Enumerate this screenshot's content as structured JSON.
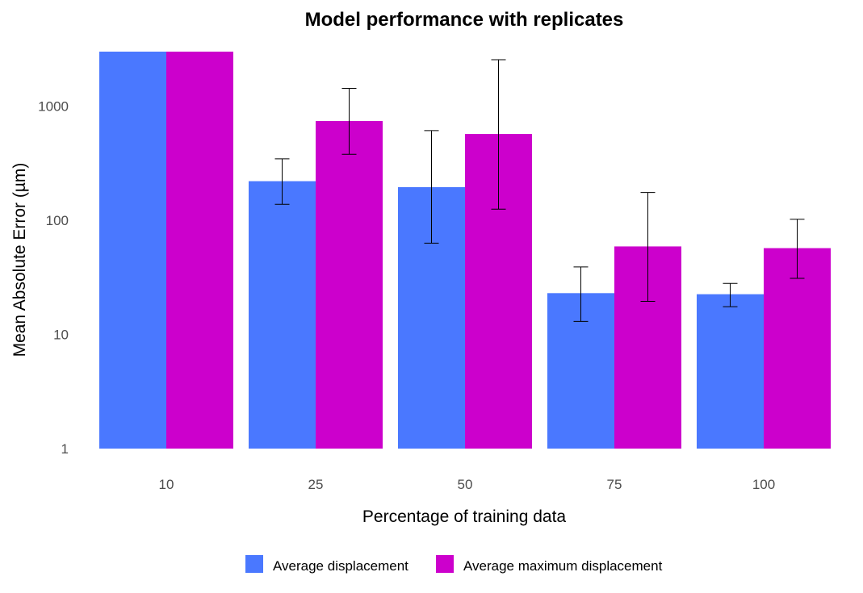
{
  "chart_data": {
    "type": "bar",
    "title": "Model performance with replicates",
    "xlabel": "Percentage of training data",
    "ylabel": "Mean Absolute Error (µm)",
    "yscale": "log",
    "ylim": [
      1,
      3000
    ],
    "yticks": [
      1,
      10,
      100,
      1000
    ],
    "ytick_labels": [
      "1",
      "10",
      "100",
      "1000"
    ],
    "categories": [
      "10",
      "25",
      "50",
      "75",
      "100"
    ],
    "series": [
      {
        "name": "Average displacement",
        "color": "#4a78ff",
        "values": [
          3000,
          220,
          195,
          23,
          22.5
        ],
        "error_low": [
          null,
          138,
          63,
          13,
          17.5
        ],
        "error_high": [
          null,
          345,
          610,
          39,
          28
        ]
      },
      {
        "name": "Average maximum displacement",
        "color": "#cc00cc",
        "values": [
          3000,
          740,
          570,
          59,
          57
        ],
        "error_low": [
          null,
          378,
          125,
          19.5,
          31
        ],
        "error_high": [
          null,
          1430,
          2550,
          175,
          102
        ]
      }
    ],
    "legend_position": "bottom",
    "grid": false
  }
}
